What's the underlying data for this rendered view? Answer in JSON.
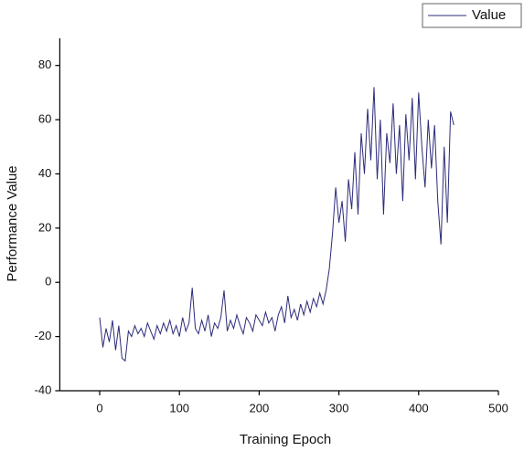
{
  "chart_data": {
    "type": "line",
    "xlabel": "Training Epoch",
    "ylabel": "Performance Value",
    "x": [
      0,
      4,
      8,
      12,
      16,
      20,
      24,
      28,
      32,
      36,
      40,
      44,
      48,
      52,
      56,
      60,
      64,
      68,
      72,
      76,
      80,
      84,
      88,
      92,
      96,
      100,
      104,
      108,
      112,
      116,
      120,
      124,
      128,
      132,
      136,
      140,
      144,
      148,
      152,
      156,
      160,
      164,
      168,
      172,
      176,
      180,
      184,
      188,
      192,
      196,
      200,
      204,
      208,
      212,
      216,
      220,
      224,
      228,
      232,
      236,
      240,
      244,
      248,
      252,
      256,
      260,
      264,
      268,
      272,
      276,
      280,
      284,
      288,
      292,
      296,
      300,
      304,
      308,
      312,
      316,
      320,
      324,
      328,
      332,
      336,
      340,
      344,
      348,
      352,
      356,
      360,
      364,
      368,
      372,
      376,
      380,
      384,
      388,
      392,
      396,
      400,
      404,
      408,
      412,
      416,
      420,
      424,
      428,
      432,
      436,
      440,
      444
    ],
    "series": [
      {
        "name": "Value",
        "color": "#2b2b7a",
        "values": [
          -13,
          -24,
          -17,
          -22,
          -14,
          -25,
          -16,
          -28,
          -29,
          -18,
          -20,
          -16,
          -19,
          -17,
          -20,
          -15,
          -18,
          -21,
          -16,
          -19,
          -15,
          -18,
          -14,
          -19,
          -16,
          -20,
          -13,
          -18,
          -15,
          -2,
          -17,
          -19,
          -14,
          -18,
          -12,
          -20,
          -15,
          -17,
          -13,
          -3,
          -18,
          -14,
          -17,
          -12,
          -16,
          -19,
          -13,
          -15,
          -18,
          -12,
          -14,
          -16,
          -11,
          -15,
          -13,
          -18,
          -12,
          -9,
          -15,
          -5,
          -13,
          -10,
          -14,
          -8,
          -12,
          -7,
          -11,
          -6,
          -9,
          -4,
          -8,
          -3,
          5,
          18,
          35,
          22,
          30,
          15,
          38,
          27,
          48,
          25,
          55,
          40,
          64,
          45,
          72,
          38,
          60,
          25,
          55,
          44,
          66,
          40,
          58,
          30,
          62,
          45,
          68,
          38,
          70,
          50,
          35,
          60,
          42,
          58,
          30,
          14,
          50,
          22,
          63,
          58
        ]
      }
    ],
    "xlim": [
      -50,
      500
    ],
    "xticks": [
      0,
      100,
      200,
      300,
      400,
      500
    ],
    "ylim": [
      -40,
      90
    ],
    "yticks": [
      -40,
      -20,
      0,
      20,
      40,
      60,
      80
    ],
    "legend": "top-right"
  }
}
